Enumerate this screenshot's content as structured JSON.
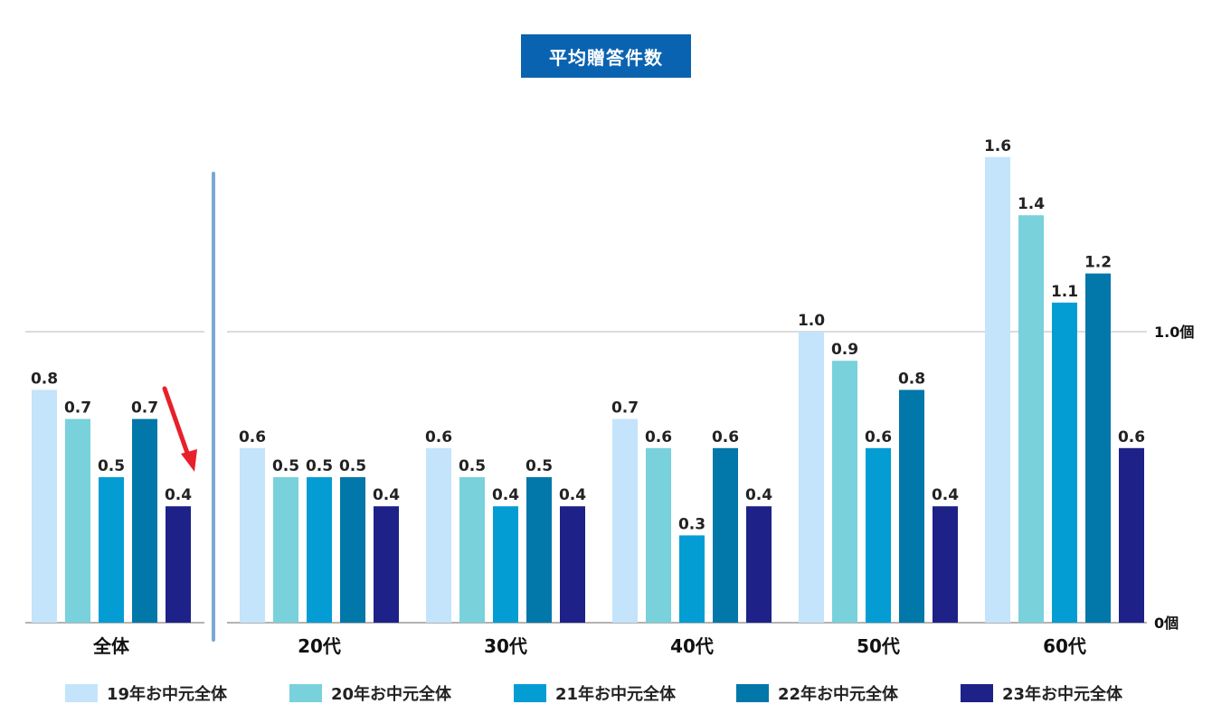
{
  "chart_data": {
    "type": "bar",
    "title": "平均贈答件数",
    "categories": [
      "全体",
      "20代",
      "30代",
      "40代",
      "50代",
      "60代"
    ],
    "series": [
      {
        "name": "19年お中元全体",
        "color": "#c3e4fb",
        "values": [
          0.8,
          0.6,
          0.6,
          0.7,
          1.0,
          1.6
        ]
      },
      {
        "name": "20年お中元全体",
        "color": "#79d1dc",
        "values": [
          0.7,
          0.5,
          0.5,
          0.6,
          0.9,
          1.4
        ]
      },
      {
        "name": "21年お中元全体",
        "color": "#039dd4",
        "values": [
          0.5,
          0.5,
          0.4,
          0.3,
          0.6,
          1.1
        ]
      },
      {
        "name": "22年お中元全体",
        "color": "#0277a9",
        "values": [
          0.7,
          0.5,
          0.5,
          0.6,
          0.8,
          1.2
        ]
      },
      {
        "name": "23年お中元全体",
        "color": "#1e2187",
        "values": [
          0.4,
          0.4,
          0.4,
          0.4,
          0.4,
          0.6
        ]
      }
    ],
    "y_ticks": [
      {
        "value": 0,
        "label": "0個"
      },
      {
        "value": 1.0,
        "label": "1.0個"
      }
    ],
    "ylim": [
      0,
      1.95
    ],
    "legend_position": "bottom",
    "annotation": "red arrow from 22年 to 23年 in 全体 indicating decrease",
    "colors": {
      "title_bg": "#0a63b0",
      "divider": "#7ba7d4",
      "arrow": "#e8202a",
      "gridline": "#c8c8c8"
    }
  }
}
